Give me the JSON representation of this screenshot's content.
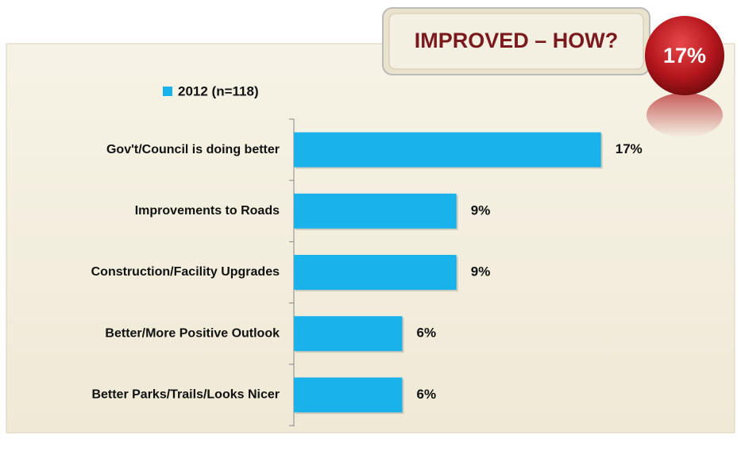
{
  "chart_data": {
    "type": "bar",
    "orientation": "horizontal",
    "title": "IMPROVED – HOW?",
    "badge": "17%",
    "categories": [
      "Gov't/Council is doing better",
      "Improvements to Roads",
      "Construction/Facility Upgrades",
      "Better/More Positive Outlook",
      "Better Parks/Trails/Looks Nicer"
    ],
    "series": [
      {
        "name": "2012 (n=118)",
        "color": "#1ab2ea",
        "values": [
          17,
          9,
          9,
          6,
          6
        ],
        "value_labels": [
          "17%",
          "9%",
          "9%",
          "6%",
          "6%"
        ]
      }
    ],
    "legend": "top-left"
  }
}
